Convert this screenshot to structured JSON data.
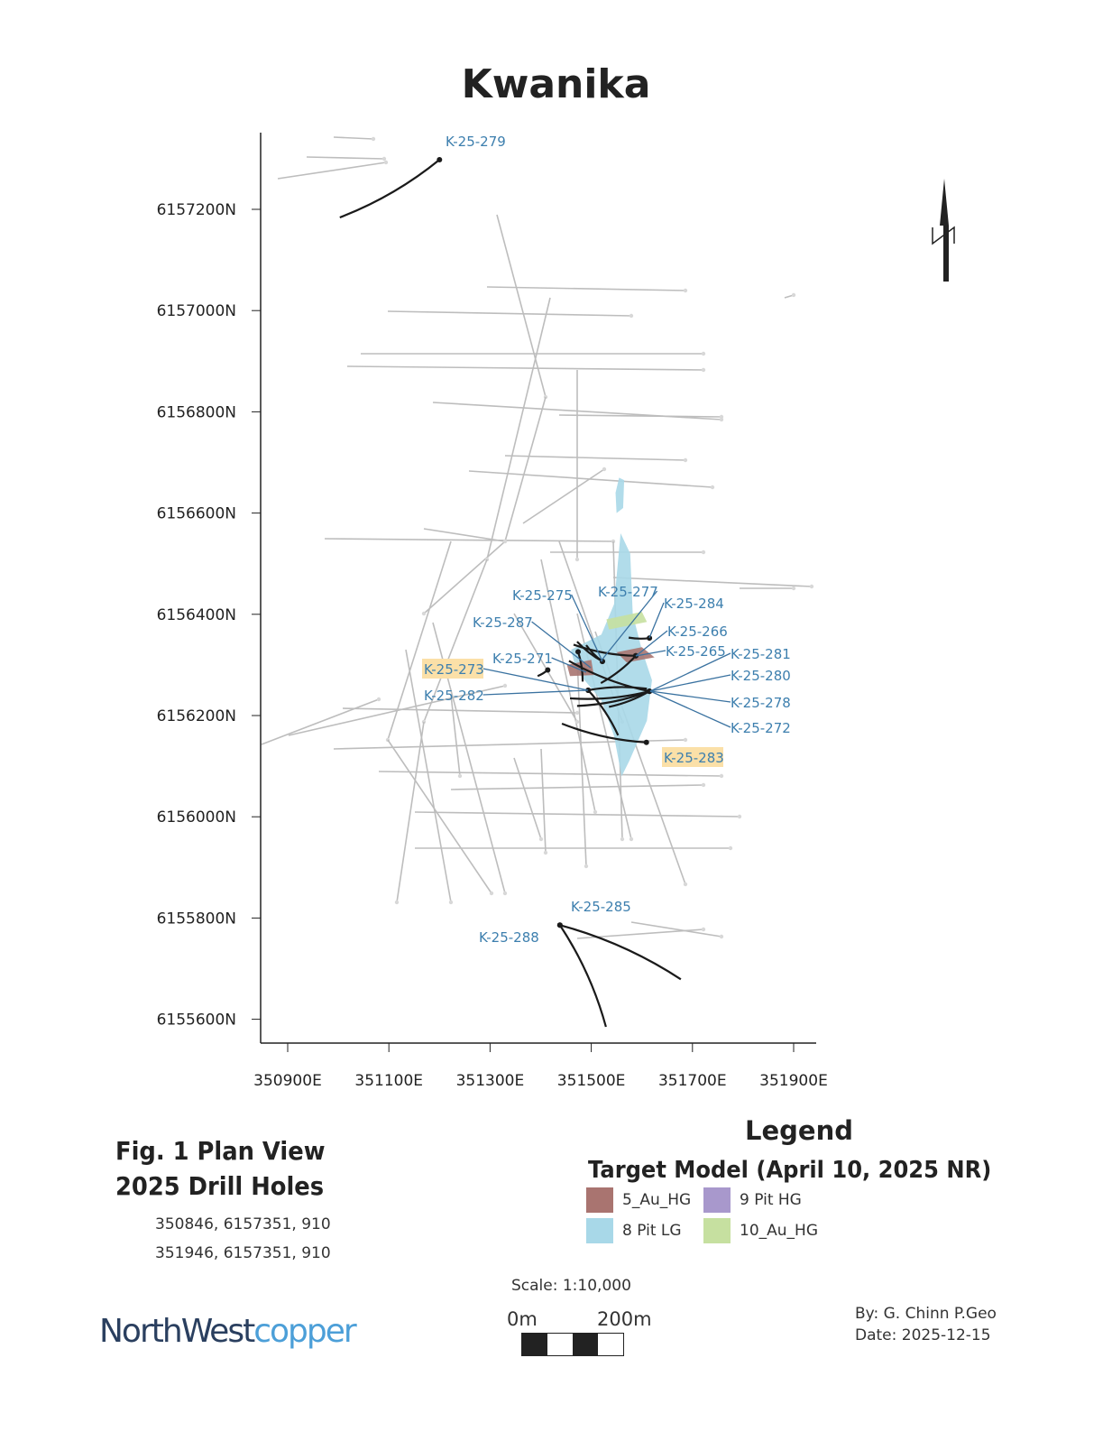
{
  "title": "Kwanika",
  "figure": {
    "line1": "Fig. 1 Plan View",
    "line2": "2025 Drill Holes"
  },
  "section_coords": [
    "350846, 6157351, 910",
    "351946, 6157351, 910"
  ],
  "legend": {
    "title": "Legend",
    "subtitle": "Target Model (April 10, 2025 NR)",
    "items": [
      {
        "label": "5_Au_HG",
        "color": "#a97470"
      },
      {
        "label": "9 Pit HG",
        "color": "#a898cc"
      },
      {
        "label": "8 Pit LG",
        "color": "#a8d8e8"
      },
      {
        "label": "10_Au_HG",
        "color": "#c6e0a0"
      }
    ]
  },
  "scale": {
    "text": "Scale: 1:10,000",
    "start": "0m",
    "end": "200m"
  },
  "credits": {
    "by": "By: G. Chinn P.Geo",
    "date": "Date: 2025-12-15"
  },
  "logo": {
    "part1": "NorthWest",
    "part2": "copper"
  },
  "colors": {
    "label": "#3d7fae",
    "highlight": "#fbe0a8",
    "drill_2025": "#1a1a1a",
    "historic": "#bdbdbd"
  },
  "map_data": {
    "x_ticks": [
      350900,
      351100,
      351300,
      351500,
      351700,
      351900
    ],
    "x_tick_labels": [
      "350900E",
      "351100E",
      "351300E",
      "351500E",
      "351700E",
      "351900E"
    ],
    "y_ticks": [
      6157200,
      6157000,
      6156800,
      6156600,
      6156400,
      6156200,
      6156000,
      6155800,
      6155600
    ],
    "y_tick_labels": [
      "6157200N",
      "6157000N",
      "6156800N",
      "6156600N",
      "6156400N",
      "6156200N",
      "6156000N",
      "6155800N",
      "6155600N"
    ],
    "north_arrow": "N",
    "holes_2025": [
      {
        "id": "K-25-279",
        "collar": [
          351200,
          6157298
        ],
        "end": [
          351003,
          6157184
        ]
      },
      {
        "id": "K-25-285",
        "collar": [
          351438,
          6155786
        ],
        "end": [
          351677,
          6155679
        ]
      },
      {
        "id": "K-25-288",
        "collar": [
          351438,
          6155786
        ],
        "end": [
          351529,
          6155585
        ]
      },
      {
        "id": "K-25-284",
        "collar": [
          351615,
          6156353
        ],
        "end": [
          351574,
          6156354
        ]
      },
      {
        "id": "K-25-266",
        "collar": [
          351588,
          6156318
        ],
        "end": [
          351519,
          6156264
        ]
      },
      {
        "id": "K-25-265",
        "collar": [
          351588,
          6156318
        ],
        "end": [
          351465,
          6156340
        ]
      },
      {
        "id": "K-25-275",
        "collar": [
          351522,
          6156307
        ],
        "end": [
          351472,
          6156346
        ]
      },
      {
        "id": "K-25-277",
        "collar": [
          351522,
          6156307
        ],
        "end": [
          351490,
          6156339
        ]
      },
      {
        "id": "K-25-271",
        "collar": [
          351474,
          6156326
        ],
        "end": [
          351483,
          6156267
        ]
      },
      {
        "id": "K-25-287",
        "collar": [
          351414,
          6156290
        ],
        "end": [
          351394,
          6156278
        ]
      },
      {
        "id": "K-25-282",
        "collar": [
          351494,
          6156250
        ],
        "end": [
          351553,
          6156161
        ]
      },
      {
        "id": "K-25-273",
        "collar": [
          351494,
          6156250
        ],
        "end": [
          351610,
          6156253
        ]
      },
      {
        "id": "K-25-281",
        "collar": [
          351615,
          6156248
        ],
        "end": [
          351456,
          6156308
        ]
      },
      {
        "id": "K-25-280",
        "collar": [
          351615,
          6156248
        ],
        "end": [
          351472,
          6156219
        ]
      },
      {
        "id": "K-25-278",
        "collar": [
          351615,
          6156248
        ],
        "end": [
          351535,
          6156217
        ]
      },
      {
        "id": "K-25-272",
        "collar": [
          351615,
          6156248
        ],
        "end": [
          351458,
          6156234
        ]
      },
      {
        "id": "K-25-283",
        "collar": [
          351609,
          6156147
        ],
        "end": [
          351442,
          6156184
        ]
      }
    ],
    "target_model": [
      {
        "unit": "8 Pit LG",
        "points": [
          [
            351558,
            6156560
          ],
          [
            351577,
            6156520
          ],
          [
            351582,
            6156400
          ],
          [
            351600,
            6156330
          ],
          [
            351620,
            6156270
          ],
          [
            351610,
            6156190
          ],
          [
            351575,
            6156110
          ],
          [
            351560,
            6156080
          ],
          [
            351545,
            6156160
          ],
          [
            351520,
            6156230
          ],
          [
            351470,
            6156290
          ],
          [
            351460,
            6156330
          ],
          [
            351520,
            6156360
          ],
          [
            351545,
            6156420
          ]
        ]
      },
      {
        "unit": "8 Pit LG",
        "points": [
          [
            351555,
            6156670
          ],
          [
            351565,
            6156665
          ],
          [
            351563,
            6156610
          ],
          [
            351550,
            6156600
          ],
          [
            351548,
            6156640
          ]
        ]
      },
      {
        "unit": "10_Au_HG",
        "points": [
          [
            351530,
            6156390
          ],
          [
            351600,
            6156405
          ],
          [
            351610,
            6156385
          ],
          [
            351535,
            6156370
          ]
        ]
      },
      {
        "unit": "5_Au_HG",
        "points": [
          [
            351550,
            6156325
          ],
          [
            351600,
            6156335
          ],
          [
            351625,
            6156315
          ],
          [
            351570,
            6156305
          ]
        ]
      },
      {
        "unit": "5_Au_HG",
        "points": [
          [
            351452,
            6156300
          ],
          [
            351500,
            6156310
          ],
          [
            351505,
            6156280
          ],
          [
            351458,
            6156278
          ]
        ]
      }
    ]
  }
}
